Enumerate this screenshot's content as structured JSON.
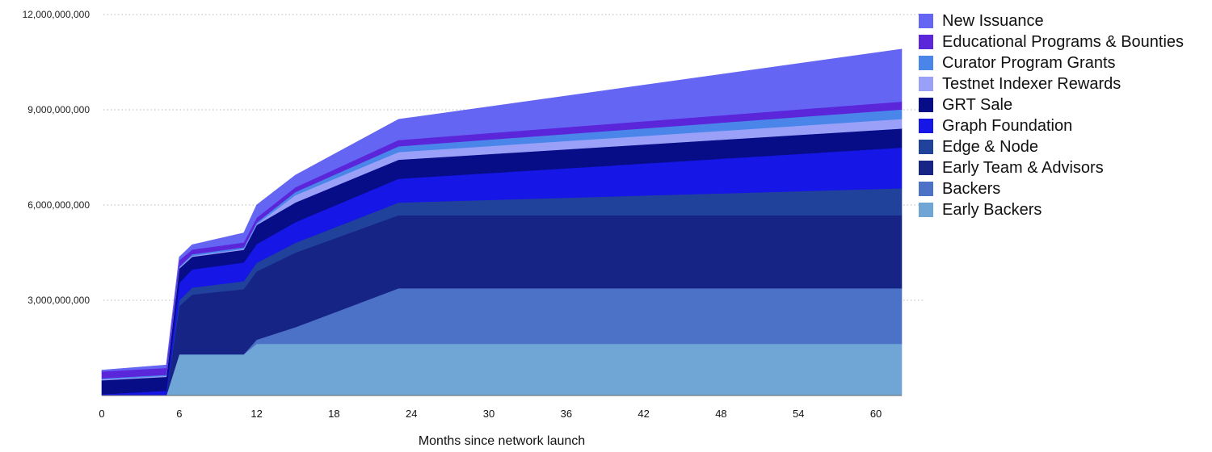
{
  "chart_data": {
    "type": "area",
    "stacked": true,
    "xlabel": "Months since network launch",
    "ylabel": "",
    "title": "",
    "xlim": [
      0,
      62
    ],
    "ylim": [
      0,
      12000000000
    ],
    "x_ticks": [
      0,
      6,
      12,
      18,
      24,
      30,
      36,
      42,
      48,
      54,
      60
    ],
    "y_ticks": [
      3000000000,
      6000000000,
      9000000000,
      12000000000
    ],
    "y_tick_labels": [
      "3,000,000,000",
      "6,000,000,000",
      "9,000,000,000",
      "12,000,000,000"
    ],
    "grid": "horizontal dotted",
    "legend_position": "right",
    "x": [
      0,
      5,
      6,
      7,
      11,
      12,
      15,
      23,
      62
    ],
    "series": [
      {
        "name": "Early Backers",
        "color": "#6fa6d6",
        "values": [
          0,
          0,
          1300000000,
          1300000000,
          1300000000,
          1630000000,
          1630000000,
          1630000000,
          1630000000
        ]
      },
      {
        "name": "Backers",
        "color": "#4c72c8",
        "values": [
          0,
          0,
          0,
          0,
          0,
          130000000,
          520000000,
          1750000000,
          1750000000
        ]
      },
      {
        "name": "Early Team & Advisors",
        "color": "#152485",
        "values": [
          0,
          0,
          1520000000,
          1880000000,
          2050000000,
          2150000000,
          2350000000,
          2300000000,
          2300000000
        ]
      },
      {
        "name": "Edge & Node",
        "color": "#21429a",
        "values": [
          0,
          0,
          180000000,
          220000000,
          250000000,
          270000000,
          310000000,
          400000000,
          850000000
        ]
      },
      {
        "name": "Graph Foundation",
        "color": "#1616e6",
        "values": [
          40000000,
          150000000,
          550000000,
          570000000,
          590000000,
          590000000,
          650000000,
          750000000,
          1280000000
        ]
      },
      {
        "name": "GRT Sale",
        "color": "#070c87",
        "values": [
          440000000,
          440000000,
          450000000,
          400000000,
          400000000,
          600000000,
          620000000,
          600000000,
          600000000
        ]
      },
      {
        "name": "Testnet Indexer Rewards",
        "color": "#9aa0f7",
        "values": [
          30000000,
          30000000,
          30000000,
          30000000,
          30000000,
          30000000,
          230000000,
          240000000,
          300000000
        ]
      },
      {
        "name": "Curator Program Grants",
        "color": "#4a86ea",
        "values": [
          30000000,
          30000000,
          30000000,
          50000000,
          50000000,
          50000000,
          100000000,
          180000000,
          300000000
        ]
      },
      {
        "name": "Educational Programs & Bounties",
        "color": "#5b25da",
        "values": [
          220000000,
          220000000,
          200000000,
          150000000,
          150000000,
          150000000,
          150000000,
          200000000,
          250000000
        ]
      },
      {
        "name": "New Issuance",
        "color": "#6565f3",
        "values": [
          40000000,
          90000000,
          100000000,
          150000000,
          300000000,
          400000000,
          380000000,
          650000000,
          1650000000
        ]
      }
    ]
  }
}
